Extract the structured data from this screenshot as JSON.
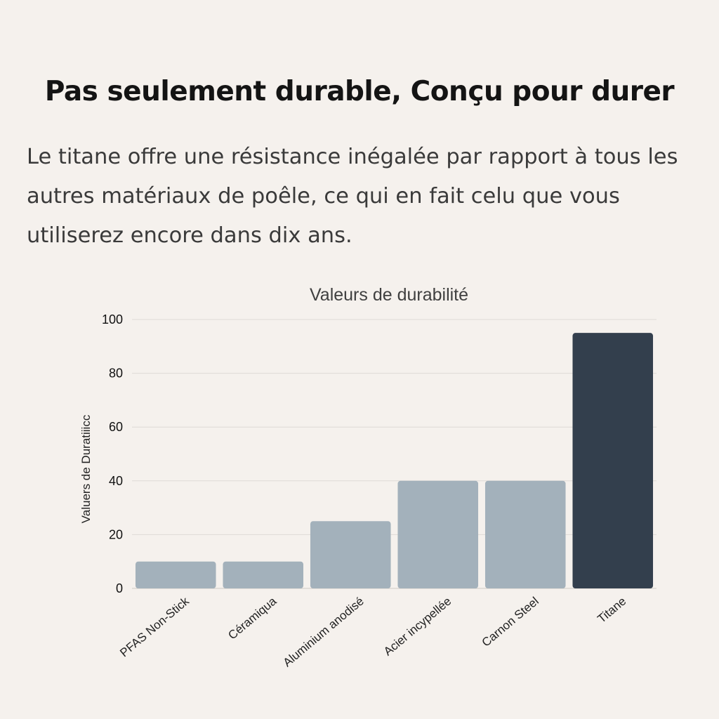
{
  "header": {
    "title": "Pas seulement durable, Conçu pour durer",
    "description": "Le titane offre une résistance inégalée par rapport à tous les autres matériaux de poêle, ce qui en fait celu que vous utiliserez encore dans dix ans."
  },
  "chart_data": {
    "type": "bar",
    "title": "Valeurs de durabilité",
    "xlabel": "",
    "ylabel": "Valuers de Duratiiicc",
    "categories": [
      "PFAS Non-Stick",
      "Céramiqua",
      "Aluminium anodisé",
      "Acier incypellée",
      "Carnon Steel",
      "Titane"
    ],
    "values": [
      10,
      10,
      25,
      40,
      40,
      95
    ],
    "ylim": [
      0,
      100
    ],
    "yticks": [
      0,
      20,
      40,
      60,
      80,
      100
    ],
    "grid": true,
    "legend": "none",
    "colors": {
      "default": "#a3b1bb",
      "highlight": "#333f4d",
      "highlight_category": "Titane"
    }
  }
}
